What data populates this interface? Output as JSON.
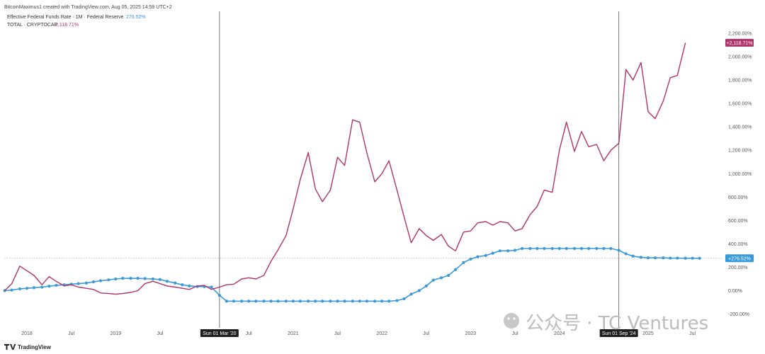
{
  "header": {
    "credit": "BitcoinMaximus1 created with TradingView.com, Aug 05, 2025 14:59 UTC+2"
  },
  "chart_data": {
    "type": "line",
    "ylim": [
      -200,
      2250
    ],
    "y_ticks": [
      2200,
      2000,
      1800,
      1600,
      1400,
      1200,
      1000,
      800,
      600,
      400,
      200,
      0,
      -200
    ],
    "y_tick_labels": [
      "2,200.00%",
      "2,000.00%",
      "1,800.00%",
      "1,600.00%",
      "1,400.00%",
      "1,200.00%",
      "1,000.00%",
      "800.00%",
      "600.00%",
      "400.00%",
      "200.00%",
      "0.00%",
      "-200.00%"
    ],
    "x_ticks": [
      {
        "t": 2018.0,
        "label": "2018"
      },
      {
        "t": 2018.5,
        "label": "Jul"
      },
      {
        "t": 2019.0,
        "label": "2019"
      },
      {
        "t": 2019.5,
        "label": "Jul"
      },
      {
        "t": 2020.5,
        "label": "Jul"
      },
      {
        "t": 2021.0,
        "label": "2021"
      },
      {
        "t": 2021.5,
        "label": "Jul"
      },
      {
        "t": 2022.0,
        "label": "2022"
      },
      {
        "t": 2022.5,
        "label": "Jul"
      },
      {
        "t": 2023.0,
        "label": "2023"
      },
      {
        "t": 2023.5,
        "label": "Jul"
      },
      {
        "t": 2024.0,
        "label": "2024"
      },
      {
        "t": 2025.0,
        "label": "2025"
      },
      {
        "t": 2025.5,
        "label": "Jul"
      }
    ],
    "x_range": [
      2017.75,
      2025.75
    ],
    "markers": [
      {
        "t": 2020.17,
        "label": "Sun 01 Mar '20"
      },
      {
        "t": 2024.67,
        "label": "Sun 01 Sep '24"
      }
    ],
    "series": [
      {
        "name": "Effective Federal Funds Rate · 1M · Federal Reserve",
        "last_value_label": "276.52%",
        "badge_label": "+276.52%",
        "color": "#3a9ad9",
        "marker": "dot",
        "points": [
          [
            2017.75,
            0
          ],
          [
            2017.83,
            5
          ],
          [
            2017.92,
            15
          ],
          [
            2018.0,
            20
          ],
          [
            2018.08,
            25
          ],
          [
            2018.17,
            30
          ],
          [
            2018.25,
            38
          ],
          [
            2018.33,
            45
          ],
          [
            2018.42,
            50
          ],
          [
            2018.5,
            55
          ],
          [
            2018.58,
            60
          ],
          [
            2018.67,
            65
          ],
          [
            2018.75,
            75
          ],
          [
            2018.83,
            85
          ],
          [
            2018.92,
            92
          ],
          [
            2019.0,
            100
          ],
          [
            2019.08,
            105
          ],
          [
            2019.17,
            105
          ],
          [
            2019.25,
            105
          ],
          [
            2019.33,
            103
          ],
          [
            2019.42,
            100
          ],
          [
            2019.5,
            95
          ],
          [
            2019.58,
            80
          ],
          [
            2019.67,
            65
          ],
          [
            2019.75,
            50
          ],
          [
            2019.83,
            40
          ],
          [
            2019.92,
            35
          ],
          [
            2020.0,
            35
          ],
          [
            2020.08,
            30
          ],
          [
            2020.17,
            -40
          ],
          [
            2020.25,
            -90
          ],
          [
            2020.33,
            -90
          ],
          [
            2020.42,
            -90
          ],
          [
            2020.5,
            -90
          ],
          [
            2020.58,
            -90
          ],
          [
            2020.67,
            -90
          ],
          [
            2020.75,
            -90
          ],
          [
            2020.83,
            -90
          ],
          [
            2020.92,
            -90
          ],
          [
            2021.0,
            -90
          ],
          [
            2021.08,
            -90
          ],
          [
            2021.17,
            -90
          ],
          [
            2021.25,
            -90
          ],
          [
            2021.33,
            -90
          ],
          [
            2021.42,
            -90
          ],
          [
            2021.5,
            -90
          ],
          [
            2021.58,
            -90
          ],
          [
            2021.67,
            -90
          ],
          [
            2021.75,
            -90
          ],
          [
            2021.83,
            -90
          ],
          [
            2021.92,
            -90
          ],
          [
            2022.0,
            -90
          ],
          [
            2022.08,
            -90
          ],
          [
            2022.17,
            -85
          ],
          [
            2022.25,
            -70
          ],
          [
            2022.33,
            -30
          ],
          [
            2022.42,
            0
          ],
          [
            2022.5,
            40
          ],
          [
            2022.58,
            90
          ],
          [
            2022.67,
            110
          ],
          [
            2022.75,
            130
          ],
          [
            2022.83,
            180
          ],
          [
            2022.92,
            240
          ],
          [
            2023.0,
            270
          ],
          [
            2023.08,
            290
          ],
          [
            2023.17,
            300
          ],
          [
            2023.25,
            320
          ],
          [
            2023.33,
            340
          ],
          [
            2023.42,
            340
          ],
          [
            2023.5,
            345
          ],
          [
            2023.58,
            360
          ],
          [
            2023.67,
            360
          ],
          [
            2023.75,
            360
          ],
          [
            2023.83,
            360
          ],
          [
            2023.92,
            360
          ],
          [
            2024.0,
            360
          ],
          [
            2024.08,
            360
          ],
          [
            2024.17,
            360
          ],
          [
            2024.25,
            360
          ],
          [
            2024.33,
            360
          ],
          [
            2024.42,
            360
          ],
          [
            2024.5,
            360
          ],
          [
            2024.58,
            360
          ],
          [
            2024.67,
            345
          ],
          [
            2024.75,
            315
          ],
          [
            2024.83,
            295
          ],
          [
            2024.92,
            285
          ],
          [
            2025.0,
            280
          ],
          [
            2025.08,
            280
          ],
          [
            2025.17,
            280
          ],
          [
            2025.25,
            278
          ],
          [
            2025.33,
            278
          ],
          [
            2025.42,
            277
          ],
          [
            2025.5,
            277
          ],
          [
            2025.58,
            276.52
          ]
        ]
      },
      {
        "name": "TOTAL · CRYPTOCAP",
        "last_value_label": "2,118.71%",
        "badge_label": "+2,118.71%",
        "color": "#b0336a",
        "marker": "none",
        "points": [
          [
            2017.75,
            0
          ],
          [
            2017.83,
            60
          ],
          [
            2017.92,
            210
          ],
          [
            2018.0,
            170
          ],
          [
            2018.08,
            130
          ],
          [
            2018.17,
            50
          ],
          [
            2018.25,
            120
          ],
          [
            2018.33,
            80
          ],
          [
            2018.42,
            40
          ],
          [
            2018.5,
            50
          ],
          [
            2018.58,
            30
          ],
          [
            2018.67,
            20
          ],
          [
            2018.75,
            10
          ],
          [
            2018.83,
            -20
          ],
          [
            2018.92,
            -25
          ],
          [
            2019.0,
            -30
          ],
          [
            2019.08,
            -25
          ],
          [
            2019.17,
            -15
          ],
          [
            2019.25,
            0
          ],
          [
            2019.33,
            60
          ],
          [
            2019.42,
            80
          ],
          [
            2019.5,
            60
          ],
          [
            2019.58,
            40
          ],
          [
            2019.67,
            30
          ],
          [
            2019.75,
            20
          ],
          [
            2019.83,
            10
          ],
          [
            2019.92,
            40
          ],
          [
            2020.0,
            45
          ],
          [
            2020.08,
            10
          ],
          [
            2020.17,
            30
          ],
          [
            2020.25,
            50
          ],
          [
            2020.33,
            55
          ],
          [
            2020.42,
            100
          ],
          [
            2020.5,
            110
          ],
          [
            2020.58,
            100
          ],
          [
            2020.67,
            130
          ],
          [
            2020.75,
            250
          ],
          [
            2020.83,
            350
          ],
          [
            2020.92,
            470
          ],
          [
            2021.0,
            700
          ],
          [
            2021.08,
            950
          ],
          [
            2021.17,
            1180
          ],
          [
            2021.25,
            870
          ],
          [
            2021.33,
            760
          ],
          [
            2021.42,
            860
          ],
          [
            2021.5,
            1140
          ],
          [
            2021.58,
            1070
          ],
          [
            2021.67,
            1460
          ],
          [
            2021.75,
            1440
          ],
          [
            2021.83,
            1180
          ],
          [
            2021.92,
            930
          ],
          [
            2022.0,
            1000
          ],
          [
            2022.08,
            1110
          ],
          [
            2022.17,
            860
          ],
          [
            2022.25,
            630
          ],
          [
            2022.33,
            410
          ],
          [
            2022.42,
            530
          ],
          [
            2022.5,
            470
          ],
          [
            2022.58,
            430
          ],
          [
            2022.67,
            480
          ],
          [
            2022.75,
            380
          ],
          [
            2022.83,
            340
          ],
          [
            2022.92,
            500
          ],
          [
            2023.0,
            510
          ],
          [
            2023.08,
            580
          ],
          [
            2023.17,
            590
          ],
          [
            2023.25,
            560
          ],
          [
            2023.33,
            590
          ],
          [
            2023.42,
            580
          ],
          [
            2023.5,
            510
          ],
          [
            2023.58,
            530
          ],
          [
            2023.67,
            650
          ],
          [
            2023.75,
            720
          ],
          [
            2023.83,
            860
          ],
          [
            2023.92,
            840
          ],
          [
            2024.0,
            1200
          ],
          [
            2024.08,
            1440
          ],
          [
            2024.17,
            1190
          ],
          [
            2024.25,
            1360
          ],
          [
            2024.33,
            1230
          ],
          [
            2024.42,
            1250
          ],
          [
            2024.5,
            1110
          ],
          [
            2024.58,
            1200
          ],
          [
            2024.67,
            1260
          ],
          [
            2024.75,
            1890
          ],
          [
            2024.83,
            1800
          ],
          [
            2024.92,
            1950
          ],
          [
            2025.0,
            1530
          ],
          [
            2025.08,
            1470
          ],
          [
            2025.17,
            1620
          ],
          [
            2025.25,
            1820
          ],
          [
            2025.33,
            1840
          ],
          [
            2025.42,
            2118.71
          ]
        ]
      }
    ]
  },
  "watermark": {
    "text": "公众号 · TC Ventures"
  },
  "footer": {
    "brand": "TradingView"
  }
}
